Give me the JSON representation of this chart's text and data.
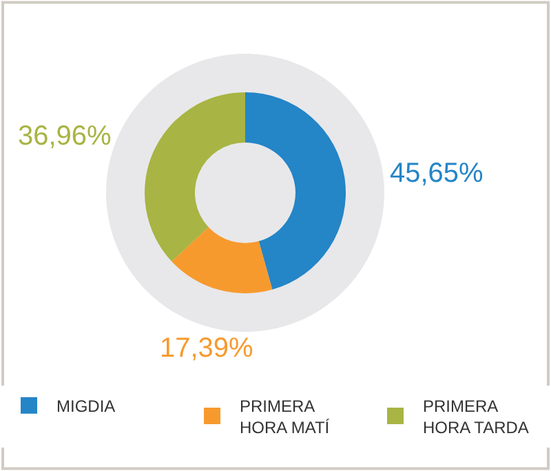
{
  "chart_data": {
    "type": "donut",
    "categories": [
      "MIGDIA",
      "PRIMERA HORA MATÍ",
      "PRIMERA HORA TARDA"
    ],
    "values": [
      45.65,
      17.39,
      36.96
    ],
    "value_labels": [
      "45,65%",
      "17,39%",
      "36,96%"
    ],
    "colors": [
      "#2485c7",
      "#f79a2e",
      "#a8b443"
    ],
    "legend": "bottom"
  }
}
